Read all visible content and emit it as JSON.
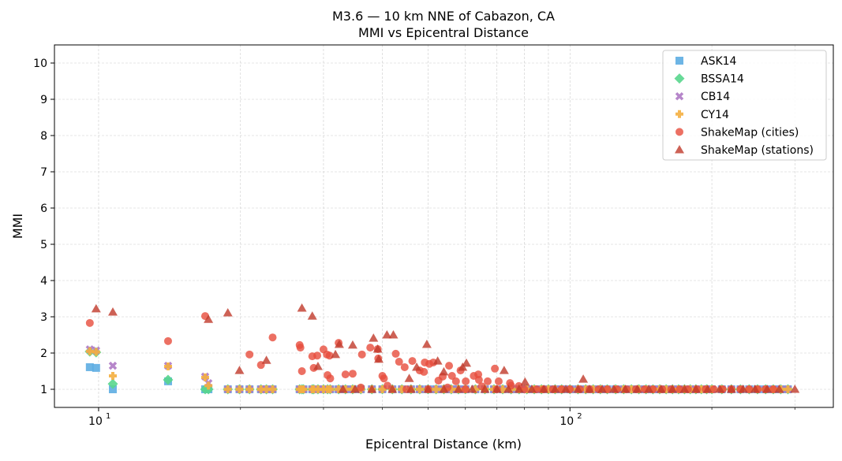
{
  "chart_data": {
    "type": "scatter",
    "title": "M3.6 — 10 km NNE of Cabazon, CA",
    "subtitle": "MMI vs Epicentral Distance",
    "xlabel": "Epicentral Distance (km)",
    "ylabel": "MMI",
    "xscale": "log",
    "xlim": [
      8.06,
      362
    ],
    "ylim": [
      0.5,
      10.5
    ],
    "xticks": [
      {
        "value": 10,
        "label": "10",
        "exp": "1"
      },
      {
        "value": 100,
        "label": "10",
        "exp": "2"
      }
    ],
    "yticks": [
      1,
      2,
      3,
      4,
      5,
      6,
      7,
      8,
      9,
      10
    ],
    "grid": true,
    "legend": "top-right",
    "series": [
      {
        "name": "ASK14",
        "marker": "square",
        "color": "#5DADE2",
        "x": [
          9.58,
          9.88,
          10.72,
          14.04,
          16.83,
          17.1,
          18.8,
          19.9,
          20.9,
          22.1,
          22.7,
          23.4,
          26.7,
          27.0,
          27.2,
          28.4,
          28.6,
          29.2,
          30.0,
          30.6,
          31.0,
          32.3,
          33.4,
          34.6,
          36,
          38,
          40,
          42,
          44,
          46,
          48,
          50,
          52,
          54,
          56,
          58,
          60,
          63,
          66,
          69,
          72,
          75,
          78,
          81,
          84,
          87,
          90,
          93,
          96,
          100,
          104,
          108,
          112,
          116,
          120,
          125,
          130,
          135,
          140,
          145,
          150,
          155,
          160,
          165,
          170,
          175,
          180,
          185,
          190,
          195,
          200,
          210,
          220,
          230,
          240,
          250,
          260,
          270,
          280,
          290
        ],
        "y": [
          1.61,
          1.59,
          1.0,
          1.22,
          1.0,
          1.0,
          1.0,
          1.0,
          1.0,
          1.0,
          1.0,
          1.0,
          1.0,
          1.0,
          1.0,
          1.0,
          1.0,
          1.0,
          1.0,
          1.0,
          1.0,
          1.0,
          1.0,
          1.0,
          1,
          1,
          1,
          1,
          1,
          1,
          1,
          1,
          1,
          1,
          1,
          1,
          1,
          1,
          1,
          1,
          1,
          1,
          1,
          1,
          1,
          1,
          1,
          1,
          1,
          1,
          1,
          1,
          1,
          1,
          1,
          1,
          1,
          1,
          1,
          1,
          1,
          1,
          1,
          1,
          1,
          1,
          1,
          1,
          1,
          1,
          1,
          1,
          1,
          1,
          1,
          1,
          1,
          1,
          1,
          1
        ]
      },
      {
        "name": "BSSA14",
        "marker": "diamond",
        "color": "#58D68D",
        "x": [
          9.58,
          9.88,
          10.72,
          14.04,
          16.83,
          17.1,
          18.8,
          19.9,
          20.9,
          22.1,
          22.7,
          23.4,
          26.7,
          27.0,
          27.2,
          28.4,
          28.6,
          29.2,
          30.0,
          30.6,
          31.0,
          32.3,
          33.4,
          34.6,
          36,
          38,
          40,
          42,
          44,
          46,
          48,
          50,
          52,
          54,
          56,
          58,
          60,
          63,
          66,
          69,
          72,
          75,
          78,
          81,
          84,
          87,
          90,
          93,
          96,
          100,
          104,
          108,
          112,
          116,
          120,
          125,
          130,
          135,
          140,
          145,
          150,
          155,
          160,
          165,
          170,
          175,
          180,
          185,
          190,
          195,
          200,
          210,
          220,
          230,
          240,
          250,
          260,
          270,
          280,
          290
        ],
        "y": [
          2.04,
          2.02,
          1.15,
          1.26,
          1.0,
          1.0,
          1.0,
          1.0,
          1.0,
          1.0,
          1.0,
          1.0,
          1.0,
          1.0,
          1.0,
          1.0,
          1.0,
          1.0,
          1.0,
          1.0,
          1.0,
          1.0,
          1.0,
          1.0,
          1,
          1,
          1,
          1,
          1,
          1,
          1,
          1,
          1,
          1,
          1,
          1,
          1,
          1,
          1,
          1,
          1,
          1,
          1,
          1,
          1,
          1,
          1,
          1,
          1,
          1,
          1,
          1,
          1,
          1,
          1,
          1,
          1,
          1,
          1,
          1,
          1,
          1,
          1,
          1,
          1,
          1,
          1,
          1,
          1,
          1,
          1,
          1,
          1,
          1,
          1,
          1,
          1,
          1,
          1,
          1
        ]
      },
      {
        "name": "CB14",
        "marker": "x",
        "color": "#AF7AC5",
        "x": [
          9.58,
          9.88,
          10.72,
          14.04,
          16.83,
          17.1,
          18.8,
          19.9,
          20.9,
          22.1,
          22.7,
          23.4,
          26.7,
          27.0,
          27.2,
          28.4,
          28.6,
          29.2,
          30.0,
          30.6,
          31.0,
          32.3,
          33.4,
          34.6,
          36,
          38,
          40,
          42,
          44,
          46,
          48,
          50,
          52,
          54,
          56,
          58,
          60,
          63,
          66,
          69,
          72,
          75,
          78,
          81,
          84,
          87,
          90,
          93,
          96,
          100,
          104,
          108,
          112,
          116,
          120,
          125,
          130,
          135,
          140,
          145,
          150,
          155,
          160,
          165,
          170,
          175,
          180,
          185,
          190,
          195,
          200,
          210,
          220,
          230,
          240,
          250,
          260,
          270,
          280,
          290
        ],
        "y": [
          2.1,
          2.07,
          1.65,
          1.65,
          1.35,
          1.17,
          1.0,
          1.0,
          1.0,
          1.0,
          1.0,
          1.0,
          1.0,
          1.0,
          1.0,
          1.0,
          1.0,
          1.0,
          1.0,
          1.0,
          1.0,
          1.0,
          1.0,
          1.0,
          1,
          1,
          1,
          1,
          1,
          1,
          1,
          1,
          1,
          1,
          1,
          1,
          1,
          1,
          1,
          1,
          1,
          1,
          1,
          1,
          1,
          1,
          1,
          1,
          1,
          1,
          1,
          1,
          1,
          1,
          1,
          1,
          1,
          1,
          1,
          1,
          1,
          1,
          1,
          1,
          1,
          1,
          1,
          1,
          1,
          1,
          1,
          1,
          1,
          1,
          1,
          1,
          1,
          1,
          1,
          1
        ]
      },
      {
        "name": "CY14",
        "marker": "plus",
        "color": "#F5B041",
        "x": [
          9.58,
          9.88,
          10.72,
          14.04,
          16.83,
          17.1,
          18.8,
          19.9,
          20.9,
          22.1,
          22.7,
          23.4,
          26.7,
          27.0,
          27.2,
          28.4,
          28.6,
          29.2,
          30.0,
          30.6,
          31.0,
          32.3,
          33.4,
          34.6,
          36,
          38,
          40,
          42,
          44,
          46,
          48,
          50,
          52,
          54,
          56,
          58,
          60,
          63,
          66,
          69,
          72,
          75,
          78,
          81,
          84,
          87,
          90,
          93,
          96,
          100,
          104,
          108,
          112,
          116,
          120,
          125,
          130,
          135,
          140,
          145,
          150,
          155,
          160,
          165,
          170,
          175,
          180,
          185,
          190,
          195,
          200,
          210,
          220,
          230,
          240,
          250,
          260,
          270,
          280,
          290
        ],
        "y": [
          2.05,
          2.03,
          1.37,
          1.63,
          1.33,
          1.1,
          1.0,
          1.0,
          1.0,
          1.0,
          1.0,
          1.0,
          1.0,
          1.0,
          1.0,
          1.0,
          1.0,
          1.0,
          1.0,
          1.0,
          1.0,
          1.0,
          1.0,
          1.0,
          1,
          1,
          1,
          1,
          1,
          1,
          1,
          1,
          1,
          1,
          1,
          1,
          1,
          1,
          1,
          1,
          1,
          1,
          1,
          1,
          1,
          1,
          1,
          1,
          1,
          1,
          1,
          1,
          1,
          1,
          1,
          1,
          1,
          1,
          1,
          1,
          1,
          1,
          1,
          1,
          1,
          1,
          1,
          1,
          1,
          1,
          1,
          1,
          1,
          1,
          1,
          1,
          1,
          1,
          1,
          1
        ]
      },
      {
        "name": "ShakeMap (cities)",
        "marker": "circle",
        "color": "#E74C3C",
        "x": [
          9.58,
          14.04,
          16.83,
          20.9,
          22.1,
          23.4,
          26.7,
          26.8,
          27.0,
          28.4,
          28.6,
          29.1,
          30.0,
          30.5,
          30.9,
          30.6,
          31.0,
          32.3,
          33.4,
          34.6,
          36.2,
          37.7,
          39.1,
          39.2,
          40.0,
          40.3,
          42.7,
          43.4,
          44.6,
          46.3,
          48.0,
          49.0,
          49.2,
          50.3,
          51.3,
          52.6,
          53.7,
          55.4,
          56.2,
          57.3,
          58.6,
          60.1,
          62.5,
          63.9,
          64.1,
          66.9,
          69.3,
          70.6,
          74.6,
          77.9,
          36,
          41,
          45,
          50,
          55,
          60,
          65,
          70,
          75,
          80,
          85,
          88,
          92,
          96,
          100,
          105,
          110,
          115,
          120,
          126,
          132,
          138,
          144,
          150,
          157,
          164,
          171,
          178,
          186,
          194,
          202,
          211,
          220,
          230,
          240,
          250,
          260,
          270
        ],
        "y": [
          2.83,
          2.33,
          3.02,
          1.96,
          1.67,
          2.43,
          2.22,
          2.15,
          1.5,
          1.91,
          1.59,
          1.93,
          2.1,
          1.96,
          1.93,
          1.39,
          1.3,
          2.28,
          1.41,
          1.43,
          1.96,
          2.15,
          2.11,
          1.85,
          1.37,
          1.3,
          1.98,
          1.76,
          1.61,
          1.78,
          1.52,
          1.48,
          1.74,
          1.7,
          1.74,
          1.24,
          1.35,
          1.65,
          1.37,
          1.22,
          1.52,
          1.22,
          1.37,
          1.41,
          1.26,
          1.22,
          1.57,
          1.22,
          1.17,
          1.09,
          1.05,
          1.1,
          1,
          1,
          1.05,
          1,
          1.08,
          1,
          1.1,
          1,
          1,
          1,
          1,
          1,
          1,
          1,
          1,
          1,
          1,
          1,
          1,
          1,
          1,
          1,
          1,
          1,
          1,
          1,
          1,
          1,
          1,
          1,
          1,
          1,
          1,
          1,
          1,
          1
        ]
      },
      {
        "name": "ShakeMap (stations)",
        "marker": "triangle",
        "color": "#C0392B",
        "x": [
          9.88,
          10.72,
          17.1,
          18.8,
          19.9,
          22.7,
          27.0,
          28.4,
          29.2,
          31.8,
          32.4,
          34.6,
          38.3,
          39.1,
          39.3,
          40.9,
          42.2,
          45.6,
          47.3,
          49.7,
          52.4,
          54.0,
          59.2,
          60.3,
          72.5,
          80.3,
          106.7,
          33,
          35,
          38,
          42,
          46,
          50,
          54,
          58,
          62,
          66,
          70,
          74,
          78,
          83,
          88,
          93,
          98,
          104,
          110,
          117,
          124,
          131,
          139,
          147,
          156,
          165,
          175,
          185,
          196,
          208,
          220,
          233,
          247,
          262,
          278,
          300
        ],
        "y": [
          3.22,
          3.13,
          2.93,
          3.11,
          1.52,
          1.8,
          3.24,
          3.02,
          1.63,
          1.96,
          2.24,
          2.22,
          2.41,
          2.11,
          1.83,
          2.5,
          2.5,
          1.3,
          1.61,
          2.24,
          1.78,
          1.48,
          1.61,
          1.72,
          1.52,
          1.2,
          1.28,
          1,
          1,
          1,
          1,
          1,
          1,
          1,
          1,
          1,
          1,
          1,
          1,
          1,
          1,
          1,
          1,
          1,
          1,
          1,
          1,
          1,
          1,
          1,
          1,
          1,
          1,
          1,
          1,
          1,
          1,
          1,
          1,
          1,
          1,
          1,
          1
        ]
      }
    ]
  }
}
